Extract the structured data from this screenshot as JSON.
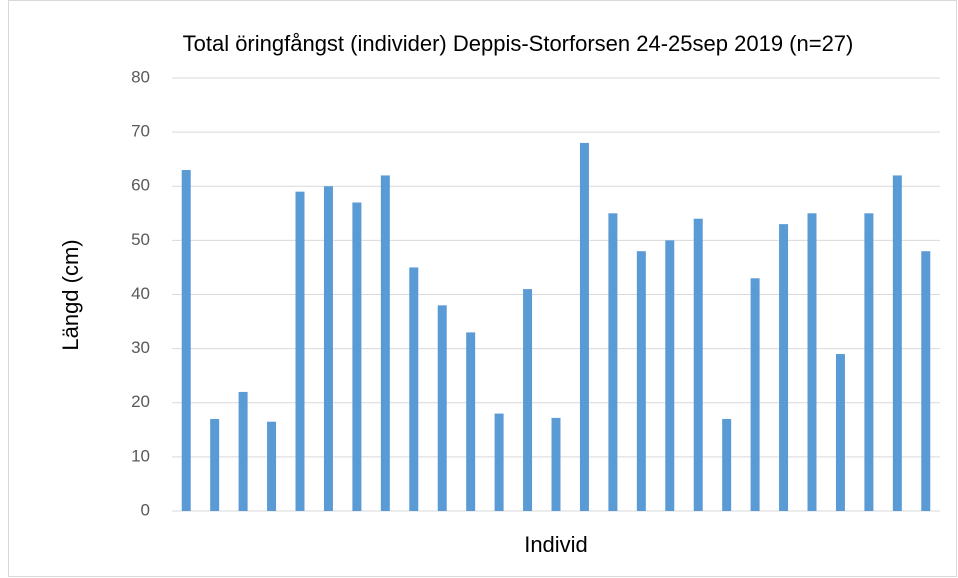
{
  "chart_data": {
    "type": "bar",
    "title": "Total öringfångst (individer)  Deppis-Storforsen 24-25sep 2019 (n=27)",
    "x_label": "Individ",
    "y_label": "Längd (cm)",
    "categories": [
      null,
      null,
      null,
      null,
      null,
      null,
      null,
      null,
      null,
      null,
      null,
      null,
      null,
      null,
      null,
      null,
      null,
      null,
      null,
      null,
      null,
      null,
      null,
      null,
      null,
      null,
      null
    ],
    "values": [
      63,
      17,
      22,
      16.5,
      59,
      60,
      57,
      62,
      45,
      38,
      33,
      18,
      41,
      17.2,
      68,
      55,
      48,
      50,
      54,
      17,
      43,
      53,
      55,
      29,
      55,
      62,
      48
    ],
    "color": "#5b9bd5",
    "ylim": [
      0,
      80
    ],
    "yticks": [
      0,
      10,
      20,
      30,
      40,
      50,
      60,
      70,
      80
    ],
    "grid": true
  }
}
